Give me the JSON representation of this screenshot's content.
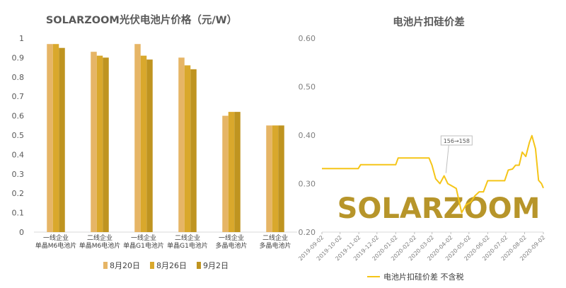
{
  "chart_data": [
    {
      "type": "bar",
      "title": "SOLARZOOM光伏电池片价格（元/W）",
      "categories": [
        [
          "一线企业",
          "单晶M6电池片"
        ],
        [
          "二线企业",
          "单晶M6电池片"
        ],
        [
          "一线企业",
          "单晶G1电池片"
        ],
        [
          "二线企业",
          "单晶G1电池片"
        ],
        [
          "一线企业",
          "多晶电池片"
        ],
        [
          "二线企业",
          "多晶电池片"
        ]
      ],
      "series": [
        {
          "name": "8月20日",
          "values": [
            0.97,
            0.93,
            0.97,
            0.9,
            0.6,
            0.55
          ],
          "color": "#e6b566"
        },
        {
          "name": "8月26日",
          "values": [
            0.97,
            0.91,
            0.91,
            0.86,
            0.62,
            0.55
          ],
          "color": "#d9a82c"
        },
        {
          "name": "9月2日",
          "values": [
            0.95,
            0.9,
            0.89,
            0.84,
            0.62,
            0.55
          ],
          "color": "#bf9420"
        }
      ],
      "ylim": [
        0,
        1
      ],
      "yticks": [
        "0",
        "0.1",
        "0.2",
        "0.3",
        "0.4",
        "0.5",
        "0.6",
        "0.7",
        "0.8",
        "0.9",
        "1"
      ],
      "legend": "bottom",
      "grid": false
    },
    {
      "type": "line",
      "title": "电池片扣硅价差",
      "ylim": [
        0.2,
        0.6
      ],
      "yticks": [
        "0.20",
        "0.30",
        "0.40",
        "0.50",
        "0.60"
      ],
      "xticks": [
        "2019-09-02",
        "2019-10-02",
        "2019-11-02",
        "2019-12-02",
        "2020-01-02",
        "2020-02-02",
        "2020-03-02",
        "2020-04-02",
        "2020-05-02",
        "2020-06-02",
        "2020-07-02",
        "2020-08-02",
        "2020-09-02"
      ],
      "xrange": [
        "2019-09-02",
        "2020-09-02"
      ],
      "annotation": {
        "text": "156→158",
        "x": "2020-03-25",
        "y": 0.316
      },
      "series": [
        {
          "name": "电池片扣硅价差 不含税",
          "color": "#f5c518",
          "points": [
            [
              "2019-09-02",
              0.331
            ],
            [
              "2019-11-01",
              0.331
            ],
            [
              "2019-11-05",
              0.339
            ],
            [
              "2020-01-02",
              0.339
            ],
            [
              "2020-01-06",
              0.353
            ],
            [
              "2020-02-26",
              0.353
            ],
            [
              "2020-03-02",
              0.338
            ],
            [
              "2020-03-08",
              0.31
            ],
            [
              "2020-03-15",
              0.3
            ],
            [
              "2020-03-22",
              0.316
            ],
            [
              "2020-03-28",
              0.3
            ],
            [
              "2020-04-04",
              0.295
            ],
            [
              "2020-04-11",
              0.29
            ],
            [
              "2020-04-20",
              0.24
            ],
            [
              "2020-04-27",
              0.256
            ],
            [
              "2020-05-05",
              0.262
            ],
            [
              "2020-05-12",
              0.275
            ],
            [
              "2020-05-19",
              0.283
            ],
            [
              "2020-05-26",
              0.283
            ],
            [
              "2020-06-02",
              0.306
            ],
            [
              "2020-06-30",
              0.306
            ],
            [
              "2020-07-06",
              0.328
            ],
            [
              "2020-07-13",
              0.33
            ],
            [
              "2020-07-18",
              0.338
            ],
            [
              "2020-07-24",
              0.338
            ],
            [
              "2020-07-29",
              0.365
            ],
            [
              "2020-08-04",
              0.356
            ],
            [
              "2020-08-10",
              0.385
            ],
            [
              "2020-08-14",
              0.399
            ],
            [
              "2020-08-20",
              0.372
            ],
            [
              "2020-08-25",
              0.307
            ],
            [
              "2020-08-30",
              0.3
            ],
            [
              "2020-09-02",
              0.291
            ]
          ]
        }
      ],
      "legend": "bottom",
      "grid": false
    }
  ],
  "watermark": "SOLARZOOM"
}
